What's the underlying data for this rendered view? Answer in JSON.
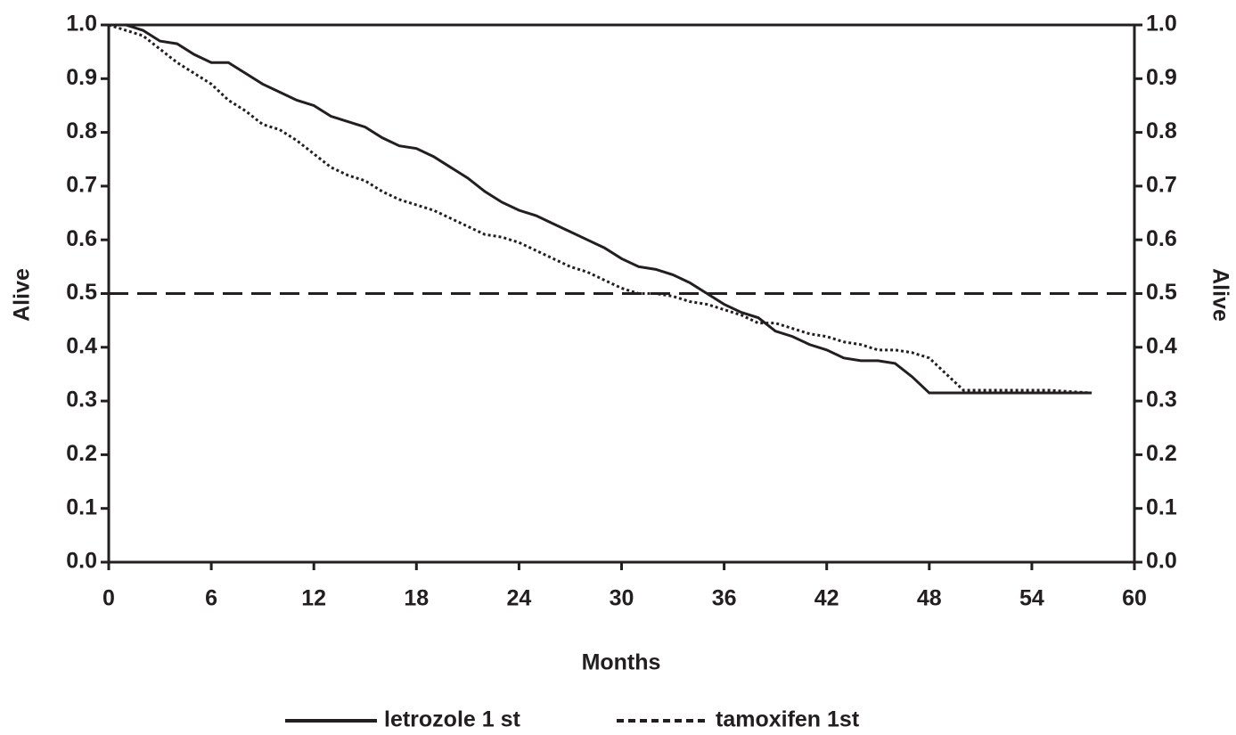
{
  "chart_data": {
    "type": "line",
    "x_label": "Months",
    "y_label": "Alive",
    "y2_label": "Alive",
    "x": [
      0,
      1,
      2,
      3,
      4,
      5,
      6,
      7,
      8,
      9,
      10,
      11,
      12,
      13,
      14,
      15,
      16,
      17,
      18,
      19,
      20,
      21,
      22,
      23,
      24,
      25,
      26,
      27,
      28,
      29,
      30,
      31,
      32,
      33,
      34,
      35,
      36,
      37,
      38,
      39,
      40,
      41,
      42,
      43,
      44,
      45,
      46,
      47,
      48,
      50,
      52,
      55,
      57.5
    ],
    "series": [
      {
        "name": "letrozole 1 st",
        "color": "#231f20",
        "line_style": "solid",
        "values": [
          1.0,
          1.0,
          0.99,
          0.97,
          0.965,
          0.945,
          0.93,
          0.93,
          0.91,
          0.89,
          0.875,
          0.86,
          0.85,
          0.83,
          0.82,
          0.81,
          0.79,
          0.775,
          0.77,
          0.755,
          0.735,
          0.715,
          0.69,
          0.67,
          0.655,
          0.645,
          0.63,
          0.615,
          0.6,
          0.585,
          0.565,
          0.55,
          0.545,
          0.535,
          0.52,
          0.5,
          0.48,
          0.465,
          0.455,
          0.43,
          0.42,
          0.405,
          0.395,
          0.38,
          0.375,
          0.375,
          0.37,
          0.345,
          0.315,
          0.315,
          0.315,
          0.315,
          0.315
        ]
      },
      {
        "name": "tamoxifen 1st",
        "color": "#231f20",
        "line_style": "dotted",
        "values": [
          1.0,
          0.99,
          0.98,
          0.955,
          0.93,
          0.91,
          0.89,
          0.86,
          0.84,
          0.815,
          0.805,
          0.785,
          0.76,
          0.735,
          0.72,
          0.71,
          0.69,
          0.675,
          0.665,
          0.655,
          0.64,
          0.625,
          0.61,
          0.605,
          0.595,
          0.58,
          0.565,
          0.55,
          0.54,
          0.525,
          0.51,
          0.5,
          0.5,
          0.495,
          0.485,
          0.48,
          0.47,
          0.46,
          0.445,
          0.445,
          0.435,
          0.425,
          0.42,
          0.41,
          0.405,
          0.395,
          0.395,
          0.39,
          0.38,
          0.32,
          0.32,
          0.32,
          0.315
        ]
      }
    ],
    "reference_line": 0.5,
    "xlim": [
      0,
      60
    ],
    "xticks": [
      0,
      6,
      12,
      18,
      24,
      30,
      36,
      42,
      48,
      54,
      60
    ],
    "ylim": [
      0,
      1
    ],
    "yticks": [
      {
        "value": 0,
        "label": "0.0"
      },
      0.1,
      0.2,
      0.3,
      0.4,
      0.5,
      0.6,
      0.7,
      0.8,
      0.9,
      {
        "value": 1,
        "label": "1.0"
      }
    ],
    "y2lim": [
      0,
      1
    ],
    "y2ticks": [
      {
        "value": 0,
        "label": "0.0"
      },
      0.1,
      0.2,
      0.3,
      0.4,
      0.5,
      0.6,
      0.7,
      0.8,
      0.9,
      {
        "value": 1,
        "label": "1.0"
      }
    ],
    "legend": "bottom"
  }
}
